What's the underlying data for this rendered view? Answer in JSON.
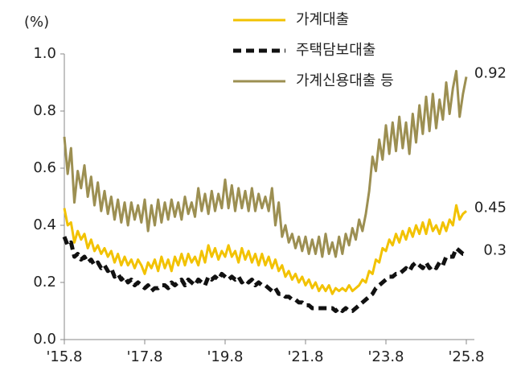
{
  "chart_data": {
    "type": "line",
    "y_label": "(%)",
    "categories": [
      "'15.8",
      null,
      null,
      null,
      null,
      null,
      null,
      null,
      null,
      null,
      null,
      null,
      null,
      null,
      null,
      null,
      null,
      null,
      null,
      null,
      null,
      null,
      null,
      null,
      "'17.8",
      null,
      null,
      null,
      null,
      null,
      null,
      null,
      null,
      null,
      null,
      null,
      null,
      null,
      null,
      null,
      null,
      null,
      null,
      null,
      null,
      null,
      null,
      null,
      "'19.8",
      null,
      null,
      null,
      null,
      null,
      null,
      null,
      null,
      null,
      null,
      null,
      null,
      null,
      null,
      null,
      null,
      null,
      null,
      null,
      null,
      null,
      null,
      null,
      "'21.8",
      null,
      null,
      null,
      null,
      null,
      null,
      null,
      null,
      null,
      null,
      null,
      null,
      null,
      null,
      null,
      null,
      null,
      null,
      null,
      null,
      null,
      null,
      null,
      "'23.8",
      null,
      null,
      null,
      null,
      null,
      null,
      null,
      null,
      null,
      null,
      null,
      null,
      null,
      null,
      null,
      null,
      null,
      null,
      null,
      null,
      null,
      null,
      null,
      "'25.8"
    ],
    "series": [
      {
        "name": "가계대출",
        "color": "#f2c200",
        "dash": false,
        "values": [
          0.46,
          0.4,
          0.41,
          0.34,
          0.38,
          0.35,
          0.37,
          0.32,
          0.35,
          0.31,
          0.33,
          0.3,
          0.32,
          0.29,
          0.31,
          0.27,
          0.3,
          0.26,
          0.29,
          0.26,
          0.28,
          0.25,
          0.28,
          0.26,
          0.23,
          0.27,
          0.25,
          0.28,
          0.24,
          0.29,
          0.25,
          0.28,
          0.24,
          0.29,
          0.26,
          0.3,
          0.26,
          0.3,
          0.27,
          0.29,
          0.26,
          0.31,
          0.27,
          0.33,
          0.29,
          0.32,
          0.28,
          0.31,
          0.29,
          0.33,
          0.29,
          0.31,
          0.27,
          0.32,
          0.28,
          0.31,
          0.27,
          0.3,
          0.26,
          0.3,
          0.26,
          0.29,
          0.25,
          0.28,
          0.24,
          0.26,
          0.22,
          0.24,
          0.21,
          0.23,
          0.2,
          0.22,
          0.19,
          0.21,
          0.18,
          0.2,
          0.17,
          0.19,
          0.17,
          0.19,
          0.16,
          0.18,
          0.17,
          0.18,
          0.17,
          0.19,
          0.17,
          0.18,
          0.19,
          0.21,
          0.2,
          0.24,
          0.23,
          0.28,
          0.27,
          0.32,
          0.31,
          0.35,
          0.33,
          0.37,
          0.34,
          0.38,
          0.35,
          0.39,
          0.36,
          0.4,
          0.37,
          0.41,
          0.37,
          0.42,
          0.38,
          0.4,
          0.37,
          0.41,
          0.38,
          0.42,
          0.4,
          0.47,
          0.42,
          0.44,
          0.45
        ]
      },
      {
        "name": "주택담보대출",
        "color": "#111111",
        "dash": true,
        "values": [
          0.36,
          0.33,
          0.34,
          0.29,
          0.3,
          0.28,
          0.29,
          0.27,
          0.28,
          0.26,
          0.27,
          0.25,
          0.26,
          0.24,
          0.25,
          0.22,
          0.23,
          0.21,
          0.22,
          0.2,
          0.21,
          0.19,
          0.2,
          0.19,
          0.18,
          0.19,
          0.17,
          0.18,
          0.18,
          0.19,
          0.19,
          0.18,
          0.2,
          0.19,
          0.2,
          0.21,
          0.19,
          0.21,
          0.2,
          0.19,
          0.21,
          0.2,
          0.19,
          0.22,
          0.21,
          0.22,
          0.21,
          0.23,
          0.22,
          0.21,
          0.22,
          0.21,
          0.22,
          0.2,
          0.21,
          0.2,
          0.21,
          0.19,
          0.2,
          0.19,
          0.19,
          0.18,
          0.17,
          0.18,
          0.16,
          0.16,
          0.15,
          0.15,
          0.14,
          0.14,
          0.13,
          0.13,
          0.12,
          0.12,
          0.11,
          0.11,
          0.11,
          0.11,
          0.11,
          0.11,
          0.11,
          0.1,
          0.11,
          0.1,
          0.11,
          0.1,
          0.1,
          0.11,
          0.12,
          0.13,
          0.14,
          0.15,
          0.16,
          0.18,
          0.19,
          0.2,
          0.21,
          0.22,
          0.22,
          0.23,
          0.23,
          0.24,
          0.25,
          0.24,
          0.26,
          0.27,
          0.26,
          0.25,
          0.27,
          0.25,
          0.26,
          0.25,
          0.27,
          0.26,
          0.29,
          0.29,
          0.29,
          0.32,
          0.31,
          0.3,
          0.3
        ]
      },
      {
        "name": "가계신용대출 등",
        "color": "#9c8f52",
        "dash": false,
        "values": [
          0.71,
          0.58,
          0.67,
          0.48,
          0.59,
          0.53,
          0.61,
          0.5,
          0.57,
          0.47,
          0.55,
          0.45,
          0.52,
          0.44,
          0.5,
          0.42,
          0.49,
          0.41,
          0.48,
          0.4,
          0.48,
          0.42,
          0.47,
          0.41,
          0.49,
          0.38,
          0.47,
          0.4,
          0.49,
          0.41,
          0.48,
          0.42,
          0.49,
          0.43,
          0.48,
          0.42,
          0.5,
          0.44,
          0.48,
          0.43,
          0.53,
          0.45,
          0.51,
          0.44,
          0.52,
          0.45,
          0.51,
          0.46,
          0.56,
          0.46,
          0.54,
          0.45,
          0.53,
          0.46,
          0.52,
          0.45,
          0.53,
          0.45,
          0.51,
          0.46,
          0.5,
          0.45,
          0.53,
          0.4,
          0.48,
          0.36,
          0.4,
          0.34,
          0.37,
          0.32,
          0.36,
          0.31,
          0.36,
          0.3,
          0.35,
          0.3,
          0.36,
          0.29,
          0.37,
          0.3,
          0.34,
          0.29,
          0.36,
          0.3,
          0.37,
          0.33,
          0.39,
          0.35,
          0.42,
          0.38,
          0.44,
          0.52,
          0.64,
          0.59,
          0.7,
          0.63,
          0.75,
          0.65,
          0.76,
          0.66,
          0.78,
          0.67,
          0.76,
          0.65,
          0.79,
          0.69,
          0.82,
          0.72,
          0.85,
          0.73,
          0.86,
          0.74,
          0.84,
          0.77,
          0.9,
          0.79,
          0.88,
          0.94,
          0.78,
          0.86,
          0.92
        ]
      }
    ],
    "ylim": [
      0,
      1.0
    ],
    "yticks": [
      {
        "value": 0,
        "label": "0.0"
      },
      0.2,
      0.4,
      0.6,
      0.8,
      {
        "value": 1.0,
        "label": "1.0"
      }
    ],
    "grid": false
  }
}
